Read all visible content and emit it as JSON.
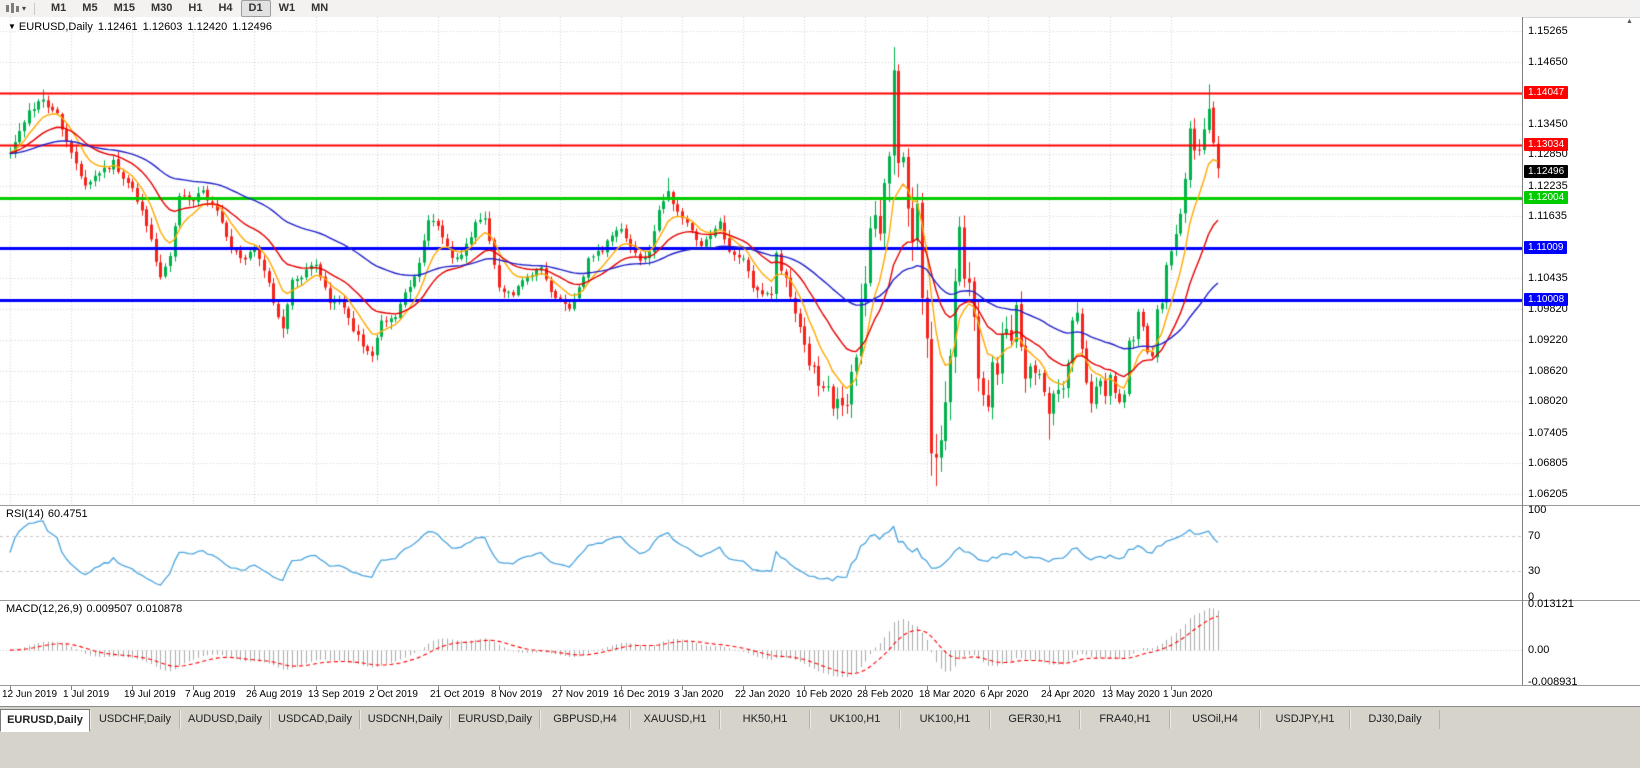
{
  "toolbar": {
    "timeframes": [
      "M1",
      "M5",
      "M15",
      "M30",
      "H1",
      "H4",
      "D1",
      "W1",
      "MN"
    ],
    "active_timeframe": "D1"
  },
  "bottom_tabs": {
    "items": [
      "EURUSD,Daily",
      "USDCHF,Daily",
      "AUDUSD,Daily",
      "USDCAD,Daily",
      "USDCNH,Daily",
      "EURUSD,Daily",
      "GBPUSD,H4",
      "XAUUSD,H1",
      "HK50,H1",
      "UK100,H1",
      "UK100,H1",
      "GER30,H1",
      "FRA40,H1",
      "USOil,H4",
      "USDJPY,H1",
      "DJ30,Daily"
    ],
    "active_index": 0
  },
  "chart_data": [
    {
      "type": "candlestick",
      "symbol": "EURUSD,Daily",
      "ohlc_display": {
        "open": "1.12461",
        "high": "1.12603",
        "low": "1.12420",
        "close": "1.12496"
      },
      "n_candles": 258,
      "x_tick_labels": [
        "12 Jun 2019",
        "1 Jul 2019",
        "19 Jul 2019",
        "7 Aug 2019",
        "26 Aug 2019",
        "13 Sep 2019",
        "2 Oct 2019",
        "21 Oct 2019",
        "8 Nov 2019",
        "27 Nov 2019",
        "16 Dec 2019",
        "3 Jan 2020",
        "22 Jan 2020",
        "10 Feb 2020",
        "28 Feb 2020",
        "18 Mar 2020",
        "6 Apr 2020",
        "24 Apr 2020",
        "13 May 2020",
        "1 Jun 2020"
      ],
      "x_tick_candle_interval": 13,
      "y_axis_ticks": [
        "1.15265",
        "1.14650",
        "1.13450",
        "1.12850",
        "1.12235",
        "1.11635",
        "1.10435",
        "1.09820",
        "1.09220",
        "1.08620",
        "1.08020",
        "1.07405",
        "1.06805",
        "1.06205"
      ],
      "ylim": [
        1.0605,
        1.1545
      ],
      "grid": true,
      "up_color": "#00B14C",
      "down_color": "#F5231C",
      "moving_averages": [
        {
          "period": 8,
          "color": "#FFAA00"
        },
        {
          "period": 20,
          "color": "#E60000"
        },
        {
          "period": 55,
          "color": "#2222CC"
        }
      ],
      "hlines": [
        {
          "price": 1.14047,
          "label": "1.14047",
          "color": "#FF0000",
          "width": 2
        },
        {
          "price": 1.13034,
          "label": "1.13034",
          "color": "#FF0000",
          "width": 2
        },
        {
          "price": 1.12004,
          "label": "1.12004",
          "color": "#00CC00",
          "width": 3
        },
        {
          "price": 1.11009,
          "label": "1.11009",
          "color": "#0000FF",
          "width": 3
        },
        {
          "price": 1.10008,
          "label": "1.10008",
          "color": "#0000FF",
          "width": 3
        }
      ],
      "current_price": {
        "value": 1.12496,
        "label": "1.12496",
        "badge_color": "#000000"
      },
      "close_anchors": [
        [
          0,
          1.1288
        ],
        [
          4,
          1.137
        ],
        [
          7,
          1.139
        ],
        [
          10,
          1.136
        ],
        [
          13,
          1.1285
        ],
        [
          16,
          1.1225
        ],
        [
          19,
          1.125
        ],
        [
          22,
          1.127
        ],
        [
          26,
          1.1215
        ],
        [
          29,
          1.115
        ],
        [
          32,
          1.104
        ],
        [
          34,
          1.109
        ],
        [
          36,
          1.12
        ],
        [
          39,
          1.1195
        ],
        [
          41,
          1.1215
        ],
        [
          44,
          1.117
        ],
        [
          47,
          1.11
        ],
        [
          50,
          1.108
        ],
        [
          52,
          1.11
        ],
        [
          55,
          1.103
        ],
        [
          58,
          1.094
        ],
        [
          60,
          1.1035
        ],
        [
          63,
          1.1055
        ],
        [
          65,
          1.107
        ],
        [
          68,
          1.1
        ],
        [
          71,
          1.099
        ],
        [
          73,
          1.094
        ],
        [
          76,
          1.09
        ],
        [
          77,
          1.089
        ],
        [
          79,
          1.096
        ],
        [
          82,
          1.097
        ],
        [
          85,
          1.103
        ],
        [
          87,
          1.107
        ],
        [
          89,
          1.116
        ],
        [
          91,
          1.115
        ],
        [
          94,
          1.108
        ],
        [
          96,
          1.1085
        ],
        [
          99,
          1.115
        ],
        [
          101,
          1.116
        ],
        [
          104,
          1.102
        ],
        [
          107,
          1.101
        ],
        [
          110,
          1.105
        ],
        [
          113,
          1.106
        ],
        [
          115,
          1.1015
        ],
        [
          117,
          1.1
        ],
        [
          119,
          1.0985
        ],
        [
          121,
          1.102
        ],
        [
          123,
          1.108
        ],
        [
          126,
          1.11
        ],
        [
          128,
          1.113
        ],
        [
          130,
          1.114
        ],
        [
          132,
          1.111
        ],
        [
          134,
          1.108
        ],
        [
          136,
          1.109
        ],
        [
          138,
          1.118
        ],
        [
          140,
          1.121
        ],
        [
          142,
          1.117
        ],
        [
          145,
          1.114
        ],
        [
          147,
          1.1105
        ],
        [
          149,
          1.113
        ],
        [
          151,
          1.115
        ],
        [
          153,
          1.1095
        ],
        [
          156,
          1.1085
        ],
        [
          158,
          1.1025
        ],
        [
          160,
          1.101
        ],
        [
          162,
          1.1015
        ],
        [
          163,
          1.109
        ],
        [
          164,
          1.106
        ],
        [
          165,
          1.1045
        ],
        [
          166,
          1.1
        ],
        [
          167,
          1.098
        ],
        [
          168,
          1.0945
        ],
        [
          169,
          1.091
        ],
        [
          170,
          1.087
        ],
        [
          171,
          1.087
        ],
        [
          172,
          1.084
        ],
        [
          173,
          1.083
        ],
        [
          174,
          1.0835
        ],
        [
          175,
          1.0795
        ],
        [
          176,
          1.08
        ],
        [
          177,
          1.0785
        ],
        [
          178,
          1.0805
        ],
        [
          179,
          1.0855
        ],
        [
          180,
          1.088
        ],
        [
          181,
          1.099
        ],
        [
          182,
          1.103
        ],
        [
          183,
          1.1135
        ],
        [
          184,
          1.117
        ],
        [
          185,
          1.1135
        ],
        [
          186,
          1.124
        ],
        [
          187,
          1.1285
        ],
        [
          188,
          1.144
        ],
        [
          189,
          1.128
        ],
        [
          190,
          1.127
        ],
        [
          191,
          1.118
        ],
        [
          192,
          1.1105
        ],
        [
          193,
          1.118
        ],
        [
          194,
          1.0995
        ],
        [
          195,
          1.0915
        ],
        [
          196,
          1.069
        ],
        [
          197,
          1.0695
        ],
        [
          198,
          1.0725
        ],
        [
          199,
          1.079
        ],
        [
          200,
          1.088
        ],
        [
          201,
          1.103
        ],
        [
          202,
          1.114
        ],
        [
          203,
          1.105
        ],
        [
          204,
          1.103
        ],
        [
          205,
          1.096
        ],
        [
          206,
          1.0855
        ],
        [
          207,
          1.0805
        ],
        [
          208,
          1.079
        ],
        [
          209,
          1.089
        ],
        [
          210,
          1.086
        ],
        [
          211,
          1.093
        ],
        [
          212,
          1.0935
        ],
        [
          213,
          1.0915
        ],
        [
          214,
          1.098
        ],
        [
          215,
          1.091
        ],
        [
          216,
          1.084
        ],
        [
          217,
          1.0875
        ],
        [
          218,
          1.086
        ],
        [
          219,
          1.0855
        ],
        [
          220,
          1.082
        ],
        [
          221,
          1.0775
        ],
        [
          222,
          1.082
        ],
        [
          223,
          1.083
        ],
        [
          224,
          1.082
        ],
        [
          225,
          1.0875
        ],
        [
          226,
          1.0955
        ],
        [
          227,
          1.098
        ],
        [
          228,
          1.0905
        ],
        [
          229,
          1.084
        ],
        [
          230,
          1.0795
        ],
        [
          231,
          1.0835
        ],
        [
          232,
          1.084
        ],
        [
          233,
          1.081
        ],
        [
          234,
          1.085
        ],
        [
          235,
          1.0815
        ],
        [
          236,
          1.08
        ],
        [
          237,
          1.082
        ],
        [
          238,
          1.0915
        ],
        [
          239,
          1.0925
        ],
        [
          240,
          1.098
        ],
        [
          241,
          1.095
        ],
        [
          242,
          1.09
        ],
        [
          243,
          1.0895
        ],
        [
          244,
          1.098
        ],
        [
          245,
          1.1
        ],
        [
          246,
          1.1075
        ],
        [
          247,
          1.11
        ],
        [
          248,
          1.1135
        ],
        [
          249,
          1.117
        ],
        [
          250,
          1.1235
        ],
        [
          251,
          1.1335
        ],
        [
          252,
          1.129
        ],
        [
          253,
          1.1295
        ],
        [
          254,
          1.134
        ],
        [
          255,
          1.1375
        ],
        [
          256,
          1.13
        ],
        [
          257,
          1.125
        ]
      ],
      "wick_overrides": {
        "7": {
          "h": 1.1412
        },
        "58": {
          "l": 1.0926
        },
        "77": {
          "l": 1.0879
        },
        "140": {
          "h": 1.1239
        },
        "177": {
          "l": 1.0778
        },
        "188": {
          "h": 1.1495
        },
        "196": {
          "l": 1.0656
        },
        "197": {
          "l": 1.0636
        },
        "202": {
          "h": 1.1148
        },
        "221": {
          "l": 1.0727
        },
        "255": {
          "h": 1.1422
        }
      },
      "volatility_anchors": [
        [
          0,
          1.0
        ],
        [
          90,
          0.9
        ],
        [
          160,
          1.0
        ],
        [
          175,
          1.5
        ],
        [
          182,
          2.2
        ],
        [
          196,
          2.8
        ],
        [
          205,
          2.2
        ],
        [
          215,
          1.8
        ],
        [
          225,
          1.3
        ],
        [
          240,
          1.0
        ],
        [
          250,
          1.3
        ],
        [
          257,
          1.5
        ]
      ]
    },
    {
      "type": "line",
      "name_label": "RSI(14)",
      "current_value": "60.4751",
      "period": 14,
      "levels": [
        70,
        30
      ],
      "y_axis_ticks": [
        "100",
        "70",
        "30",
        "0"
      ],
      "ylim": [
        0,
        100
      ],
      "color": "#4DA6E0"
    },
    {
      "type": "macd",
      "name_label": "MACD(12,26,9)",
      "main_value": "0.009507",
      "signal_value": "0.010878",
      "fast": 12,
      "slow": 26,
      "signal": 9,
      "y_axis_ticks": [
        "0.013121",
        "0.00",
        "-0.008931"
      ],
      "ylim": [
        -0.008931,
        0.013121
      ],
      "histogram_color": "#ABABAB",
      "signal_color": "#FF0000"
    }
  ]
}
